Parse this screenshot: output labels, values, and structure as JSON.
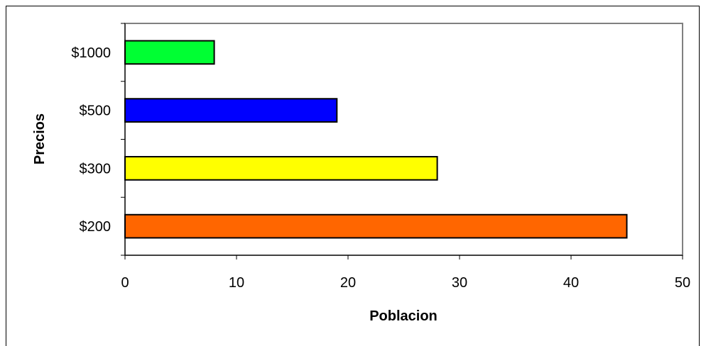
{
  "chart_data": {
    "type": "bar",
    "orientation": "horizontal",
    "title": "",
    "xlabel": "Poblacion",
    "ylabel": "Precios",
    "categories": [
      "$200",
      "$300",
      "$500",
      "$1000"
    ],
    "values": [
      45,
      28,
      19,
      8
    ],
    "colors": [
      "#ff6600",
      "#ffff00",
      "#0000ff",
      "#00ff33"
    ],
    "xlim": [
      0,
      50
    ],
    "xticks": [
      0,
      10,
      20,
      30,
      40,
      50
    ],
    "grid": false,
    "legend": "none",
    "plot_border_color": "#808080",
    "bar_edge_color": "#000000"
  }
}
